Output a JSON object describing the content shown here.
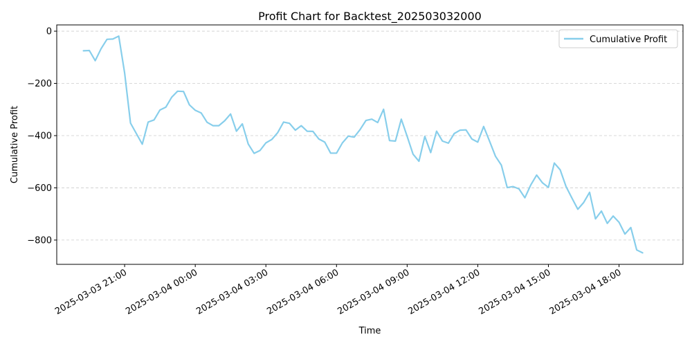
{
  "chart_data": {
    "type": "line",
    "title": "Profit Chart for Backtest_202503032000",
    "xlabel": "Time",
    "ylabel": "Cumulative Profit",
    "grid": "horizontal dashed",
    "legend_position": "top-right",
    "xlim": [
      "2025-03-03 18:07",
      "2025-03-04 20:43"
    ],
    "ylim": [
      -893,
      24
    ],
    "yticks": [
      0,
      -200,
      -400,
      -600,
      -800
    ],
    "ytick_labels": [
      "0",
      "−200",
      "−400",
      "−600",
      "−800"
    ],
    "xticks": [
      "2025-03-03 21:00",
      "2025-03-04 00:00",
      "2025-03-04 03:00",
      "2025-03-04 06:00",
      "2025-03-04 09:00",
      "2025-03-04 12:00",
      "2025-03-04 15:00",
      "2025-03-04 18:00"
    ],
    "xtick_labels": [
      "2025-03-03 21:00",
      "2025-03-04 00:00",
      "2025-03-04 03:00",
      "2025-03-04 06:00",
      "2025-03-04 09:00",
      "2025-03-04 12:00",
      "2025-03-04 15:00",
      "2025-03-04 18:00"
    ],
    "series": [
      {
        "name": "Cumulative Profit",
        "color": "#87ceeb",
        "points": [
          [
            "2025-03-03 19:15",
            -75
          ],
          [
            "2025-03-03 19:30",
            -74
          ],
          [
            "2025-03-03 19:45",
            -113
          ],
          [
            "2025-03-03 20:00",
            -67
          ],
          [
            "2025-03-03 20:15",
            -31
          ],
          [
            "2025-03-03 20:30",
            -30
          ],
          [
            "2025-03-03 20:45",
            -19
          ],
          [
            "2025-03-03 21:00",
            -160
          ],
          [
            "2025-03-03 21:15",
            -352
          ],
          [
            "2025-03-03 21:45",
            -433
          ],
          [
            "2025-03-03 22:00",
            -348
          ],
          [
            "2025-03-03 22:15",
            -340
          ],
          [
            "2025-03-03 22:30",
            -302
          ],
          [
            "2025-03-03 22:45",
            -291
          ],
          [
            "2025-03-03 23:00",
            -253
          ],
          [
            "2025-03-03 23:15",
            -230
          ],
          [
            "2025-03-03 23:30",
            -231
          ],
          [
            "2025-03-03 23:45",
            -282
          ],
          [
            "2025-03-04 00:00",
            -303
          ],
          [
            "2025-03-04 00:15",
            -313
          ],
          [
            "2025-03-04 00:30",
            -349
          ],
          [
            "2025-03-04 00:45",
            -362
          ],
          [
            "2025-03-04 01:00",
            -362
          ],
          [
            "2025-03-04 01:15",
            -343
          ],
          [
            "2025-03-04 01:30",
            -317
          ],
          [
            "2025-03-04 01:45",
            -383
          ],
          [
            "2025-03-04 02:00",
            -355
          ],
          [
            "2025-03-04 02:15",
            -432
          ],
          [
            "2025-03-04 02:30",
            -468
          ],
          [
            "2025-03-04 02:45",
            -457
          ],
          [
            "2025-03-04 03:00",
            -428
          ],
          [
            "2025-03-04 03:15",
            -415
          ],
          [
            "2025-03-04 03:30",
            -389
          ],
          [
            "2025-03-04 03:45",
            -348
          ],
          [
            "2025-03-04 04:00",
            -353
          ],
          [
            "2025-03-04 04:15",
            -379
          ],
          [
            "2025-03-04 04:30",
            -362
          ],
          [
            "2025-03-04 04:45",
            -383
          ],
          [
            "2025-03-04 05:00",
            -384
          ],
          [
            "2025-03-04 05:15",
            -413
          ],
          [
            "2025-03-04 05:30",
            -425
          ],
          [
            "2025-03-04 05:45",
            -467
          ],
          [
            "2025-03-04 06:00",
            -467
          ],
          [
            "2025-03-04 06:15",
            -428
          ],
          [
            "2025-03-04 06:30",
            -402
          ],
          [
            "2025-03-04 06:45",
            -406
          ],
          [
            "2025-03-04 07:00",
            -377
          ],
          [
            "2025-03-04 07:15",
            -342
          ],
          [
            "2025-03-04 07:30",
            -337
          ],
          [
            "2025-03-04 07:45",
            -350
          ],
          [
            "2025-03-04 08:00",
            -299
          ],
          [
            "2025-03-04 08:15",
            -419
          ],
          [
            "2025-03-04 08:30",
            -421
          ],
          [
            "2025-03-04 08:45",
            -337
          ],
          [
            "2025-03-04 09:00",
            -403
          ],
          [
            "2025-03-04 09:15",
            -471
          ],
          [
            "2025-03-04 09:30",
            -498
          ],
          [
            "2025-03-04 09:45",
            -403
          ],
          [
            "2025-03-04 10:00",
            -465
          ],
          [
            "2025-03-04 10:15",
            -383
          ],
          [
            "2025-03-04 10:30",
            -421
          ],
          [
            "2025-03-04 10:45",
            -429
          ],
          [
            "2025-03-04 11:00",
            -392
          ],
          [
            "2025-03-04 11:15",
            -379
          ],
          [
            "2025-03-04 11:30",
            -378
          ],
          [
            "2025-03-04 11:45",
            -413
          ],
          [
            "2025-03-04 12:00",
            -425
          ],
          [
            "2025-03-04 12:15",
            -365
          ],
          [
            "2025-03-04 12:30",
            -421
          ],
          [
            "2025-03-04 12:45",
            -479
          ],
          [
            "2025-03-04 13:00",
            -513
          ],
          [
            "2025-03-04 13:15",
            -599
          ],
          [
            "2025-03-04 13:30",
            -595
          ],
          [
            "2025-03-04 13:45",
            -604
          ],
          [
            "2025-03-04 14:00",
            -638
          ],
          [
            "2025-03-04 14:15",
            -589
          ],
          [
            "2025-03-04 14:30",
            -551
          ],
          [
            "2025-03-04 14:45",
            -581
          ],
          [
            "2025-03-04 15:00",
            -598
          ],
          [
            "2025-03-04 15:15",
            -505
          ],
          [
            "2025-03-04 15:30",
            -531
          ],
          [
            "2025-03-04 15:45",
            -595
          ],
          [
            "2025-03-04 16:00",
            -639
          ],
          [
            "2025-03-04 16:15",
            -682
          ],
          [
            "2025-03-04 16:30",
            -656
          ],
          [
            "2025-03-04 16:45",
            -617
          ],
          [
            "2025-03-04 17:00",
            -719
          ],
          [
            "2025-03-04 17:15",
            -689
          ],
          [
            "2025-03-04 17:30",
            -736
          ],
          [
            "2025-03-04 17:45",
            -708
          ],
          [
            "2025-03-04 18:00",
            -732
          ],
          [
            "2025-03-04 18:15",
            -777
          ],
          [
            "2025-03-04 18:30",
            -752
          ],
          [
            "2025-03-04 18:45",
            -838
          ],
          [
            "2025-03-04 19:00",
            -849
          ]
        ]
      }
    ]
  }
}
